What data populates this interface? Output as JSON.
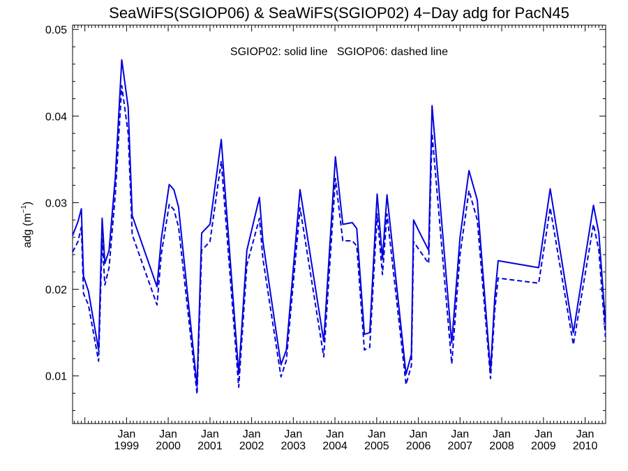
{
  "chart_data": {
    "type": "line",
    "title": "SeaWiFS(SGIOP06) & SeaWiFS(SGIOP02) 4−Day adg for PacN45",
    "annotation": "SGIOP02: solid line   SGIOP06: dashed line",
    "ylabel": "adg (m",
    "ylabel_sup": "−1",
    "ylabel_close": ")",
    "xlabel": "",
    "ylim": [
      0.0045,
      0.0505
    ],
    "xlim": [
      "1997-09-15",
      "2010-06-30"
    ],
    "y_ticks": [
      0.01,
      0.02,
      0.03,
      0.04,
      0.05
    ],
    "y_tick_labels": [
      "0.01",
      "0.02",
      "0.03",
      "0.04",
      "0.05"
    ],
    "x_ticks": [
      {
        "date": "1999-01-01",
        "month": "Jan",
        "year": "1999"
      },
      {
        "date": "2000-01-01",
        "month": "Jan",
        "year": "2000"
      },
      {
        "date": "2001-01-01",
        "month": "Jan",
        "year": "2001"
      },
      {
        "date": "2002-01-01",
        "month": "Jan",
        "year": "2002"
      },
      {
        "date": "2003-01-01",
        "month": "Jan",
        "year": "2003"
      },
      {
        "date": "2004-01-01",
        "month": "Jan",
        "year": "2004"
      },
      {
        "date": "2005-01-01",
        "month": "Jan",
        "year": "2005"
      },
      {
        "date": "2006-01-01",
        "month": "Jan",
        "year": "2006"
      },
      {
        "date": "2007-01-01",
        "month": "Jan",
        "year": "2007"
      },
      {
        "date": "2008-01-01",
        "month": "Jan",
        "year": "2008"
      },
      {
        "date": "2009-01-01",
        "month": "Jan",
        "year": "2009"
      },
      {
        "date": "2010-01-01",
        "month": "Jan",
        "year": "2010"
      }
    ],
    "color": "#0000dd",
    "grid": false,
    "series": [
      {
        "label": "SGIOP02",
        "style": "solid",
        "points": [
          [
            "1997-09-15",
            0.0262
          ],
          [
            "1997-11-01",
            0.0278
          ],
          [
            "1997-12-01",
            0.0293
          ],
          [
            "1997-12-20",
            0.0215
          ],
          [
            "1998-02-01",
            0.0198
          ],
          [
            "1998-05-01",
            0.013
          ],
          [
            "1998-06-01",
            0.0282
          ],
          [
            "1998-06-25",
            0.023
          ],
          [
            "1998-08-01",
            0.0245
          ],
          [
            "1998-09-25",
            0.033
          ],
          [
            "1998-11-20",
            0.0465
          ],
          [
            "1999-01-15",
            0.041
          ],
          [
            "1999-02-20",
            0.0285
          ],
          [
            "1999-09-25",
            0.0203
          ],
          [
            "1999-11-01",
            0.0258
          ],
          [
            "2000-01-10",
            0.0321
          ],
          [
            "2000-02-20",
            0.0315
          ],
          [
            "2000-04-01",
            0.0295
          ],
          [
            "2000-09-10",
            0.0088
          ],
          [
            "2000-10-20",
            0.0265
          ],
          [
            "2001-01-01",
            0.0275
          ],
          [
            "2001-04-10",
            0.0373
          ],
          [
            "2001-09-10",
            0.0102
          ],
          [
            "2001-11-20",
            0.0245
          ],
          [
            "2002-03-10",
            0.0306
          ],
          [
            "2002-04-10",
            0.0255
          ],
          [
            "2002-09-15",
            0.0113
          ],
          [
            "2002-11-01",
            0.013
          ],
          [
            "2003-03-01",
            0.0315
          ],
          [
            "2003-09-25",
            0.014
          ],
          [
            "2004-01-05",
            0.0353
          ],
          [
            "2004-03-10",
            0.0275
          ],
          [
            "2004-06-01",
            0.0277
          ],
          [
            "2004-07-10",
            0.027
          ],
          [
            "2004-09-15",
            0.0148
          ],
          [
            "2004-11-01",
            0.015
          ],
          [
            "2005-01-05",
            0.031
          ],
          [
            "2005-02-20",
            0.0235
          ],
          [
            "2005-04-01",
            0.0309
          ],
          [
            "2005-09-15",
            0.0102
          ],
          [
            "2005-11-01",
            0.0125
          ],
          [
            "2005-11-20",
            0.028
          ],
          [
            "2006-01-10",
            0.0266
          ],
          [
            "2006-04-01",
            0.0245
          ],
          [
            "2006-05-01",
            0.0412
          ],
          [
            "2006-10-20",
            0.0138
          ],
          [
            "2007-01-01",
            0.026
          ],
          [
            "2007-03-20",
            0.0337
          ],
          [
            "2007-06-01",
            0.0303
          ],
          [
            "2007-09-25",
            0.0105
          ],
          [
            "2007-11-01",
            0.019
          ],
          [
            "2007-12-01",
            0.0233
          ],
          [
            "2008-11-20",
            0.0225
          ],
          [
            "2009-03-01",
            0.0316
          ],
          [
            "2009-09-20",
            0.015
          ],
          [
            "2010-03-15",
            0.0297
          ],
          [
            "2010-05-01",
            0.0265
          ],
          [
            "2010-06-28",
            0.016
          ]
        ]
      },
      {
        "label": "SGIOP06",
        "style": "dashed",
        "points": [
          [
            "1997-09-15",
            0.0243
          ],
          [
            "1997-11-01",
            0.0255
          ],
          [
            "1997-12-01",
            0.0272
          ],
          [
            "1997-12-20",
            0.0195
          ],
          [
            "1998-02-01",
            0.0182
          ],
          [
            "1998-05-01",
            0.0117
          ],
          [
            "1998-06-01",
            0.0258
          ],
          [
            "1998-06-25",
            0.0205
          ],
          [
            "1998-08-01",
            0.0225
          ],
          [
            "1998-09-25",
            0.031
          ],
          [
            "1998-11-20",
            0.0435
          ],
          [
            "1999-01-15",
            0.038
          ],
          [
            "1999-02-20",
            0.0263
          ],
          [
            "1999-09-25",
            0.0182
          ],
          [
            "1999-11-01",
            0.024
          ],
          [
            "2000-01-10",
            0.0298
          ],
          [
            "2000-02-20",
            0.0292
          ],
          [
            "2000-04-01",
            0.0272
          ],
          [
            "2000-09-10",
            0.0079
          ],
          [
            "2000-10-20",
            0.0245
          ],
          [
            "2001-01-01",
            0.0255
          ],
          [
            "2001-04-10",
            0.0348
          ],
          [
            "2001-09-10",
            0.0087
          ],
          [
            "2001-11-20",
            0.0228
          ],
          [
            "2002-03-10",
            0.0282
          ],
          [
            "2002-04-10",
            0.0235
          ],
          [
            "2002-09-15",
            0.0099
          ],
          [
            "2002-11-01",
            0.0118
          ],
          [
            "2003-03-01",
            0.0294
          ],
          [
            "2003-09-25",
            0.0122
          ],
          [
            "2004-01-05",
            0.0328
          ],
          [
            "2004-03-10",
            0.0256
          ],
          [
            "2004-06-01",
            0.0256
          ],
          [
            "2004-07-10",
            0.025
          ],
          [
            "2004-09-15",
            0.013
          ],
          [
            "2004-11-01",
            0.0133
          ],
          [
            "2005-01-05",
            0.0287
          ],
          [
            "2005-02-20",
            0.0217
          ],
          [
            "2005-04-01",
            0.0287
          ],
          [
            "2005-09-15",
            0.009
          ],
          [
            "2005-11-01",
            0.0112
          ],
          [
            "2005-11-20",
            0.0255
          ],
          [
            "2006-01-10",
            0.0245
          ],
          [
            "2006-04-01",
            0.023
          ],
          [
            "2006-05-01",
            0.038
          ],
          [
            "2006-10-20",
            0.0114
          ],
          [
            "2007-01-01",
            0.024
          ],
          [
            "2007-03-20",
            0.0314
          ],
          [
            "2007-06-01",
            0.028
          ],
          [
            "2007-09-25",
            0.0097
          ],
          [
            "2007-11-01",
            0.0175
          ],
          [
            "2007-12-01",
            0.0213
          ],
          [
            "2008-11-20",
            0.0207
          ],
          [
            "2009-03-01",
            0.0294
          ],
          [
            "2009-09-20",
            0.0136
          ],
          [
            "2010-03-15",
            0.0275
          ],
          [
            "2010-05-01",
            0.0245
          ],
          [
            "2010-06-28",
            0.0145
          ]
        ]
      }
    ]
  }
}
